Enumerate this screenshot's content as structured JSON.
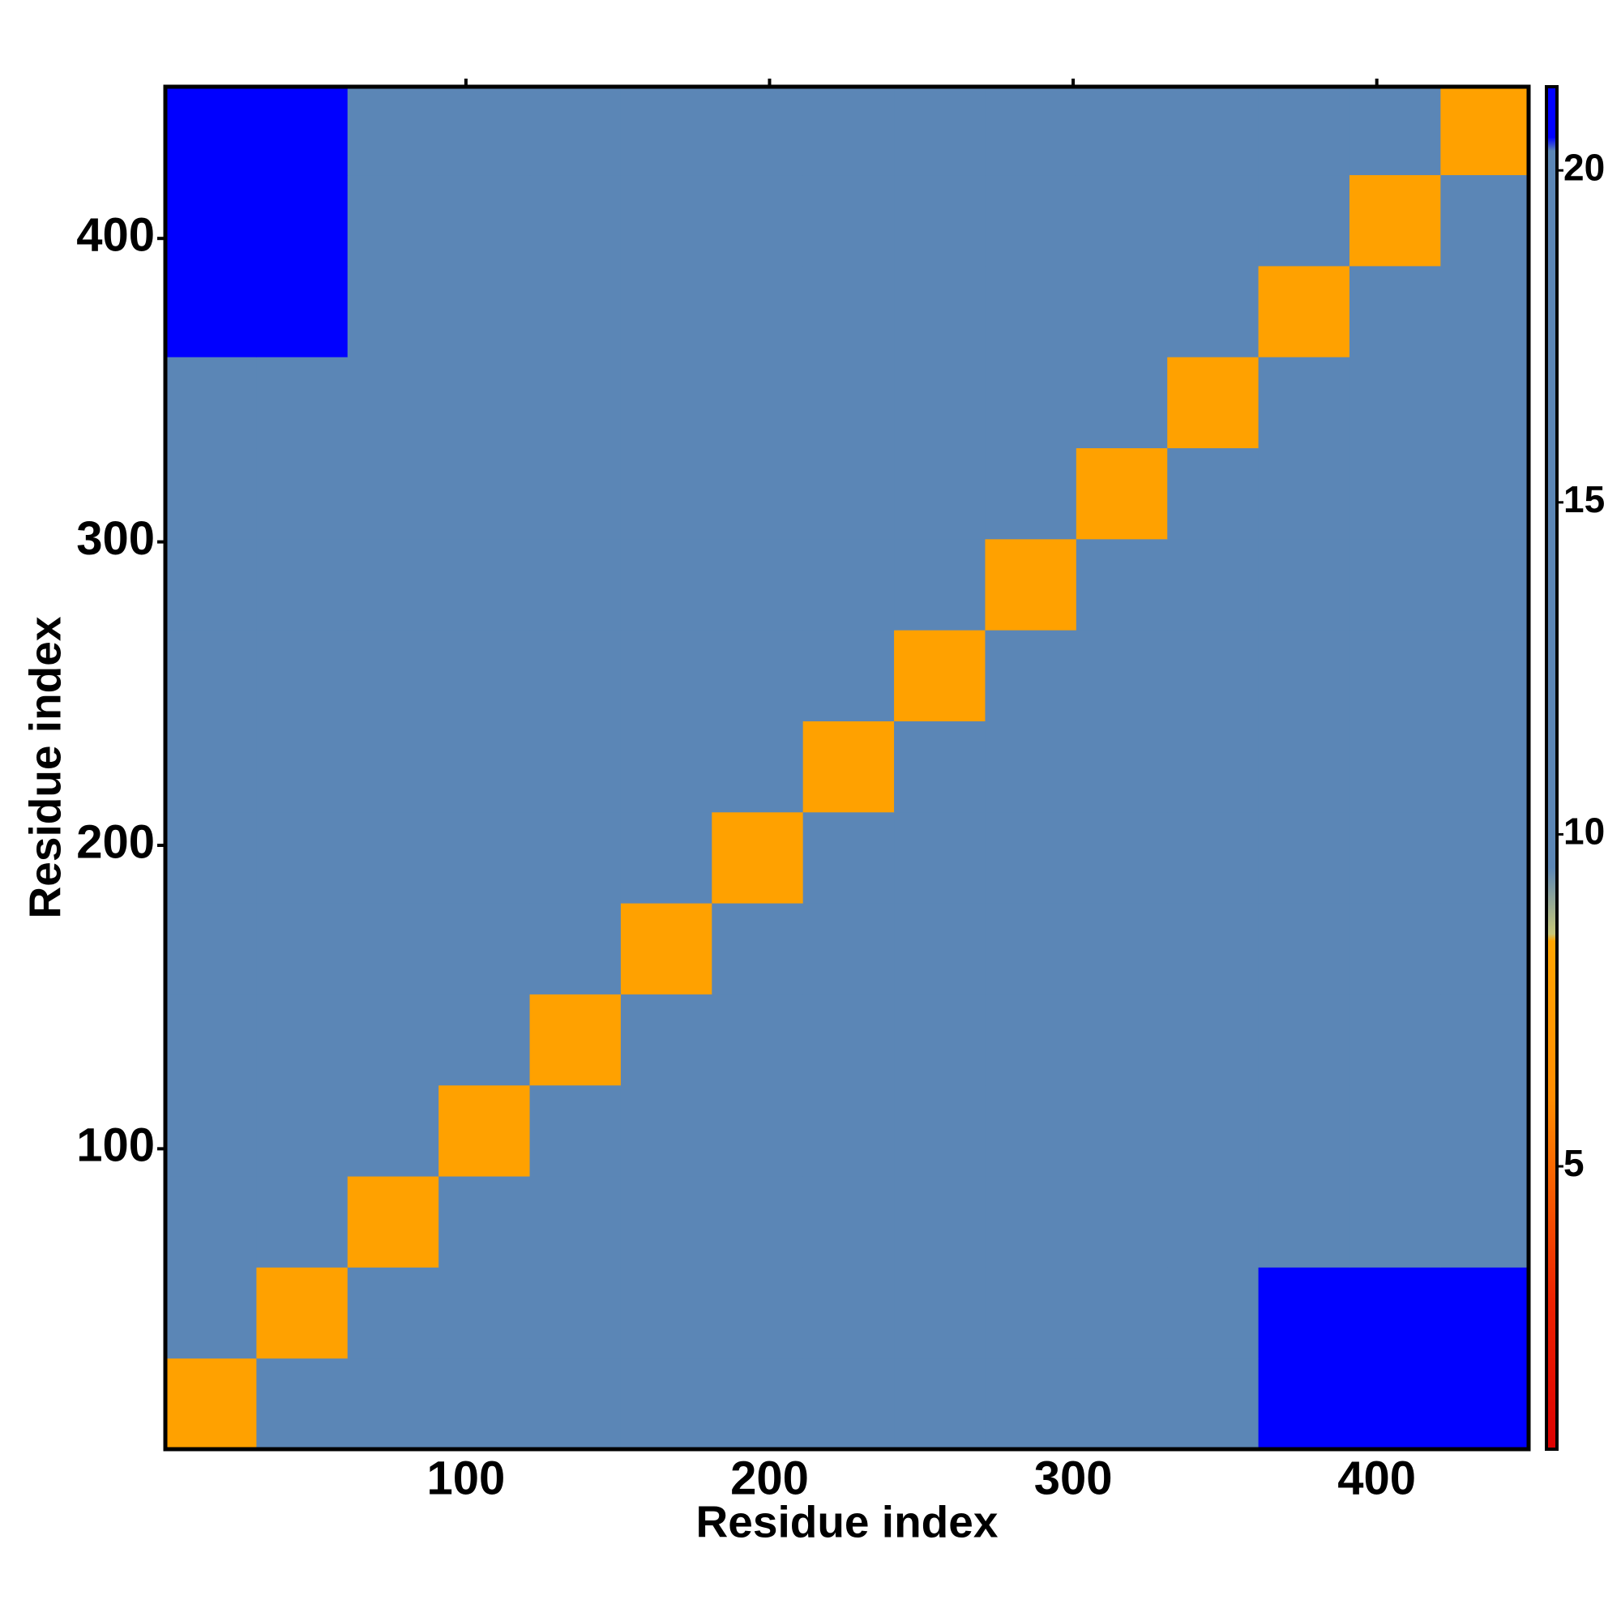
{
  "chart_data": {
    "type": "heatmap",
    "x_label": "Residue index",
    "y_label": "Residue index",
    "edges": [
      1,
      31,
      61,
      91,
      121,
      151,
      181,
      211,
      241,
      271,
      301,
      331,
      361,
      391,
      421,
      450
    ],
    "z": [
      [
        8,
        13,
        16,
        16,
        16,
        16,
        16,
        20,
        20,
        20,
        20,
        20,
        21,
        21,
        21
      ],
      [
        13,
        8,
        13,
        16,
        16,
        16,
        16,
        20,
        20,
        20,
        17,
        17,
        21,
        21,
        21
      ],
      [
        16,
        13,
        8,
        13,
        16,
        16,
        16,
        20,
        20,
        20,
        17,
        17,
        17,
        17,
        20
      ],
      [
        16,
        16,
        13,
        8,
        13,
        16,
        16,
        20,
        20,
        20,
        17,
        17,
        17,
        17,
        20
      ],
      [
        16,
        16,
        16,
        13,
        8,
        13,
        16,
        20,
        20,
        20,
        17,
        17,
        17,
        17,
        20
      ],
      [
        16,
        16,
        16,
        16,
        13,
        8,
        13,
        20,
        20,
        20,
        17,
        17,
        17,
        17,
        20
      ],
      [
        16,
        16,
        16,
        16,
        16,
        13,
        8,
        13,
        20,
        20,
        17,
        17,
        17,
        17,
        20
      ],
      [
        20,
        20,
        20,
        20,
        20,
        20,
        13,
        8,
        13,
        16,
        16,
        16,
        16,
        16,
        16
      ],
      [
        20,
        20,
        20,
        20,
        20,
        20,
        20,
        13,
        8,
        13,
        16,
        16,
        16,
        16,
        16
      ],
      [
        20,
        20,
        20,
        20,
        20,
        20,
        20,
        16,
        13,
        8,
        13,
        16,
        16,
        16,
        16
      ],
      [
        20,
        17,
        17,
        17,
        17,
        17,
        17,
        16,
        16,
        13,
        8,
        13,
        16,
        16,
        16
      ],
      [
        20,
        17,
        17,
        17,
        17,
        17,
        17,
        16,
        16,
        16,
        13,
        8,
        13,
        16,
        16
      ],
      [
        21,
        21,
        17,
        17,
        17,
        17,
        17,
        16,
        16,
        16,
        16,
        13,
        8,
        13,
        16
      ],
      [
        21,
        21,
        17,
        17,
        17,
        17,
        17,
        16,
        16,
        16,
        16,
        16,
        13,
        8,
        13
      ],
      [
        21,
        21,
        20,
        20,
        20,
        20,
        20,
        16,
        16,
        16,
        16,
        16,
        16,
        13,
        8
      ]
    ],
    "xlim": [
      1,
      450
    ],
    "ylim": [
      1,
      450
    ],
    "xticks": [
      100,
      200,
      300,
      400
    ],
    "yticks": [
      100,
      200,
      300,
      400
    ],
    "colorbar": {
      "lim": [
        0.74,
        21.26
      ],
      "ticks": [
        5,
        10,
        15,
        20
      ],
      "stops": [
        {
          "value": 0.74,
          "color": "#dd0000"
        },
        {
          "value": 3,
          "color": "#ee2200"
        },
        {
          "value": 6,
          "color": "#ff8c00"
        },
        {
          "value": 8.4,
          "color": "#ffa500"
        },
        {
          "value": 8.5,
          "color": "#c8c878"
        },
        {
          "value": 9.5,
          "color": "#5b86b6"
        },
        {
          "value": 20.3,
          "color": "#5b86b6"
        },
        {
          "value": 20.5,
          "color": "#0000ff"
        },
        {
          "value": 21.26,
          "color": "#0000ff"
        }
      ]
    }
  }
}
